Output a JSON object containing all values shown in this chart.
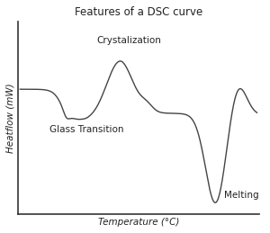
{
  "title": "Features of a DSC curve",
  "xlabel": "Temperature (°C)",
  "ylabel": "Heatflow (mW)",
  "background_color": "#ffffff",
  "line_color": "#444444",
  "title_fontsize": 8.5,
  "label_fontsize": 7.5,
  "annot_fontsize": 7.5
}
